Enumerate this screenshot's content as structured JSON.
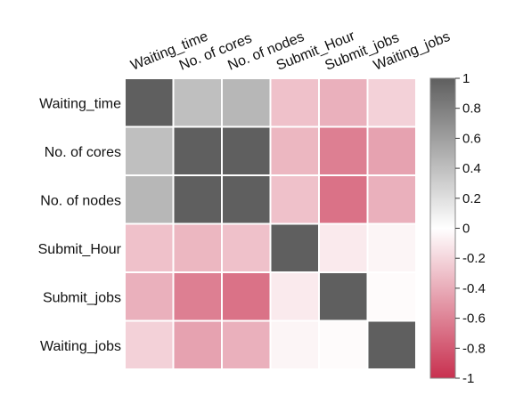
{
  "chart_data": {
    "type": "heatmap",
    "title": "",
    "row_labels": [
      "Waiting_time",
      "No. of cores",
      "No. of nodes",
      "Submit_Hour",
      "Submit_jobs",
      "Waiting_jobs"
    ],
    "col_labels": [
      "Waiting_time",
      "No. of cores",
      "No. of nodes",
      "Submit_Hour",
      "Submit_jobs",
      "Waiting_jobs"
    ],
    "values": [
      [
        1.0,
        0.4,
        0.45,
        -0.3,
        -0.38,
        -0.22
      ],
      [
        0.4,
        1.0,
        1.0,
        -0.35,
        -0.62,
        -0.45
      ],
      [
        0.45,
        1.0,
        1.0,
        -0.3,
        -0.68,
        -0.38
      ],
      [
        -0.3,
        -0.35,
        -0.3,
        1.0,
        -0.1,
        -0.05
      ],
      [
        -0.38,
        -0.62,
        -0.68,
        -0.1,
        1.0,
        -0.02
      ],
      [
        -0.22,
        -0.45,
        -0.38,
        -0.05,
        -0.02,
        1.0
      ]
    ],
    "colorbar": {
      "range": [
        -1,
        1
      ],
      "ticks": [
        "1",
        "0.8",
        "0.6",
        "0.4",
        "0.2",
        "0",
        "-0.2",
        "-0.4",
        "-0.6",
        "-0.8",
        "-1"
      ],
      "positive_color": "#5f5f5f",
      "zero_color": "#ffffff",
      "negative_color": "#c8304f"
    },
    "grid": true,
    "legend_placement": "right"
  }
}
